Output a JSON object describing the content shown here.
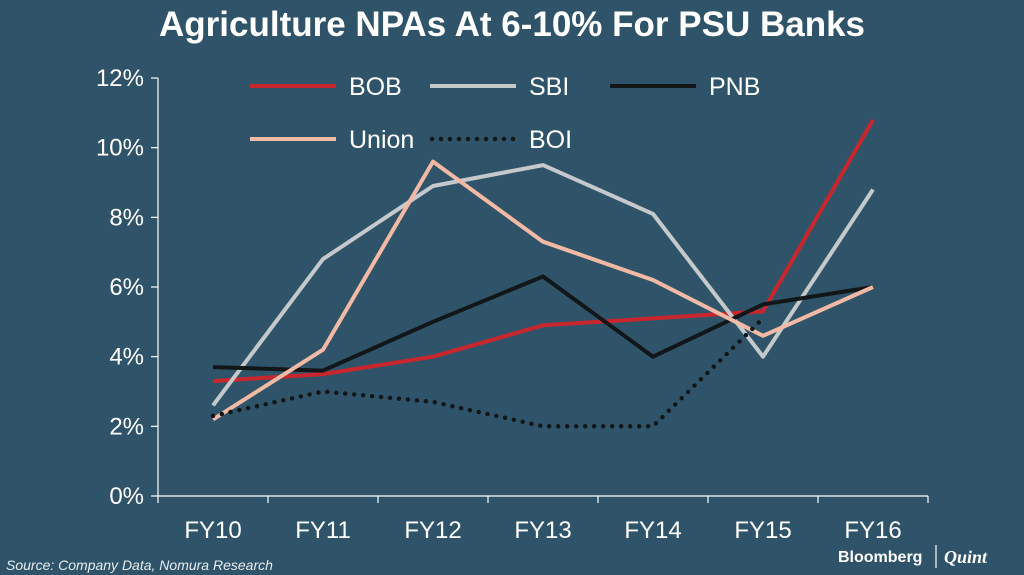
{
  "chart_data": {
    "type": "line",
    "title": "Agriculture NPAs At 6-10% For PSU Banks",
    "xlabel": "",
    "ylabel": "",
    "categories": [
      "FY10",
      "FY11",
      "FY12",
      "FY13",
      "FY14",
      "FY15",
      "FY16"
    ],
    "ylim": [
      0,
      12
    ],
    "yticks": [
      "0%",
      "2%",
      "4%",
      "6%",
      "8%",
      "10%",
      "12%"
    ],
    "series": [
      {
        "name": "BOB",
        "color": "#c8262c",
        "style": "solid",
        "values": [
          3.3,
          3.5,
          4.0,
          4.9,
          5.1,
          5.3,
          10.8
        ]
      },
      {
        "name": "SBI",
        "color": "#c5c9cc",
        "style": "solid",
        "values": [
          2.6,
          6.8,
          8.9,
          9.5,
          8.1,
          4.0,
          8.8
        ]
      },
      {
        "name": "PNB",
        "color": "#111618",
        "style": "solid",
        "values": [
          3.7,
          3.6,
          5.0,
          6.3,
          4.0,
          5.5,
          6.0
        ]
      },
      {
        "name": "Union",
        "color": "#f2b9a5",
        "style": "solid",
        "values": [
          2.2,
          4.2,
          9.6,
          7.3,
          6.2,
          4.6,
          6.0
        ]
      },
      {
        "name": "BOI",
        "color": "#111618",
        "style": "dotted",
        "values": [
          2.3,
          3.0,
          2.7,
          2.0,
          2.0,
          5.1,
          null
        ]
      }
    ]
  },
  "footer": {
    "source": "Source: Company Data, Nomura Research",
    "brand_left": "Bloomberg",
    "brand_right": "Quint"
  }
}
